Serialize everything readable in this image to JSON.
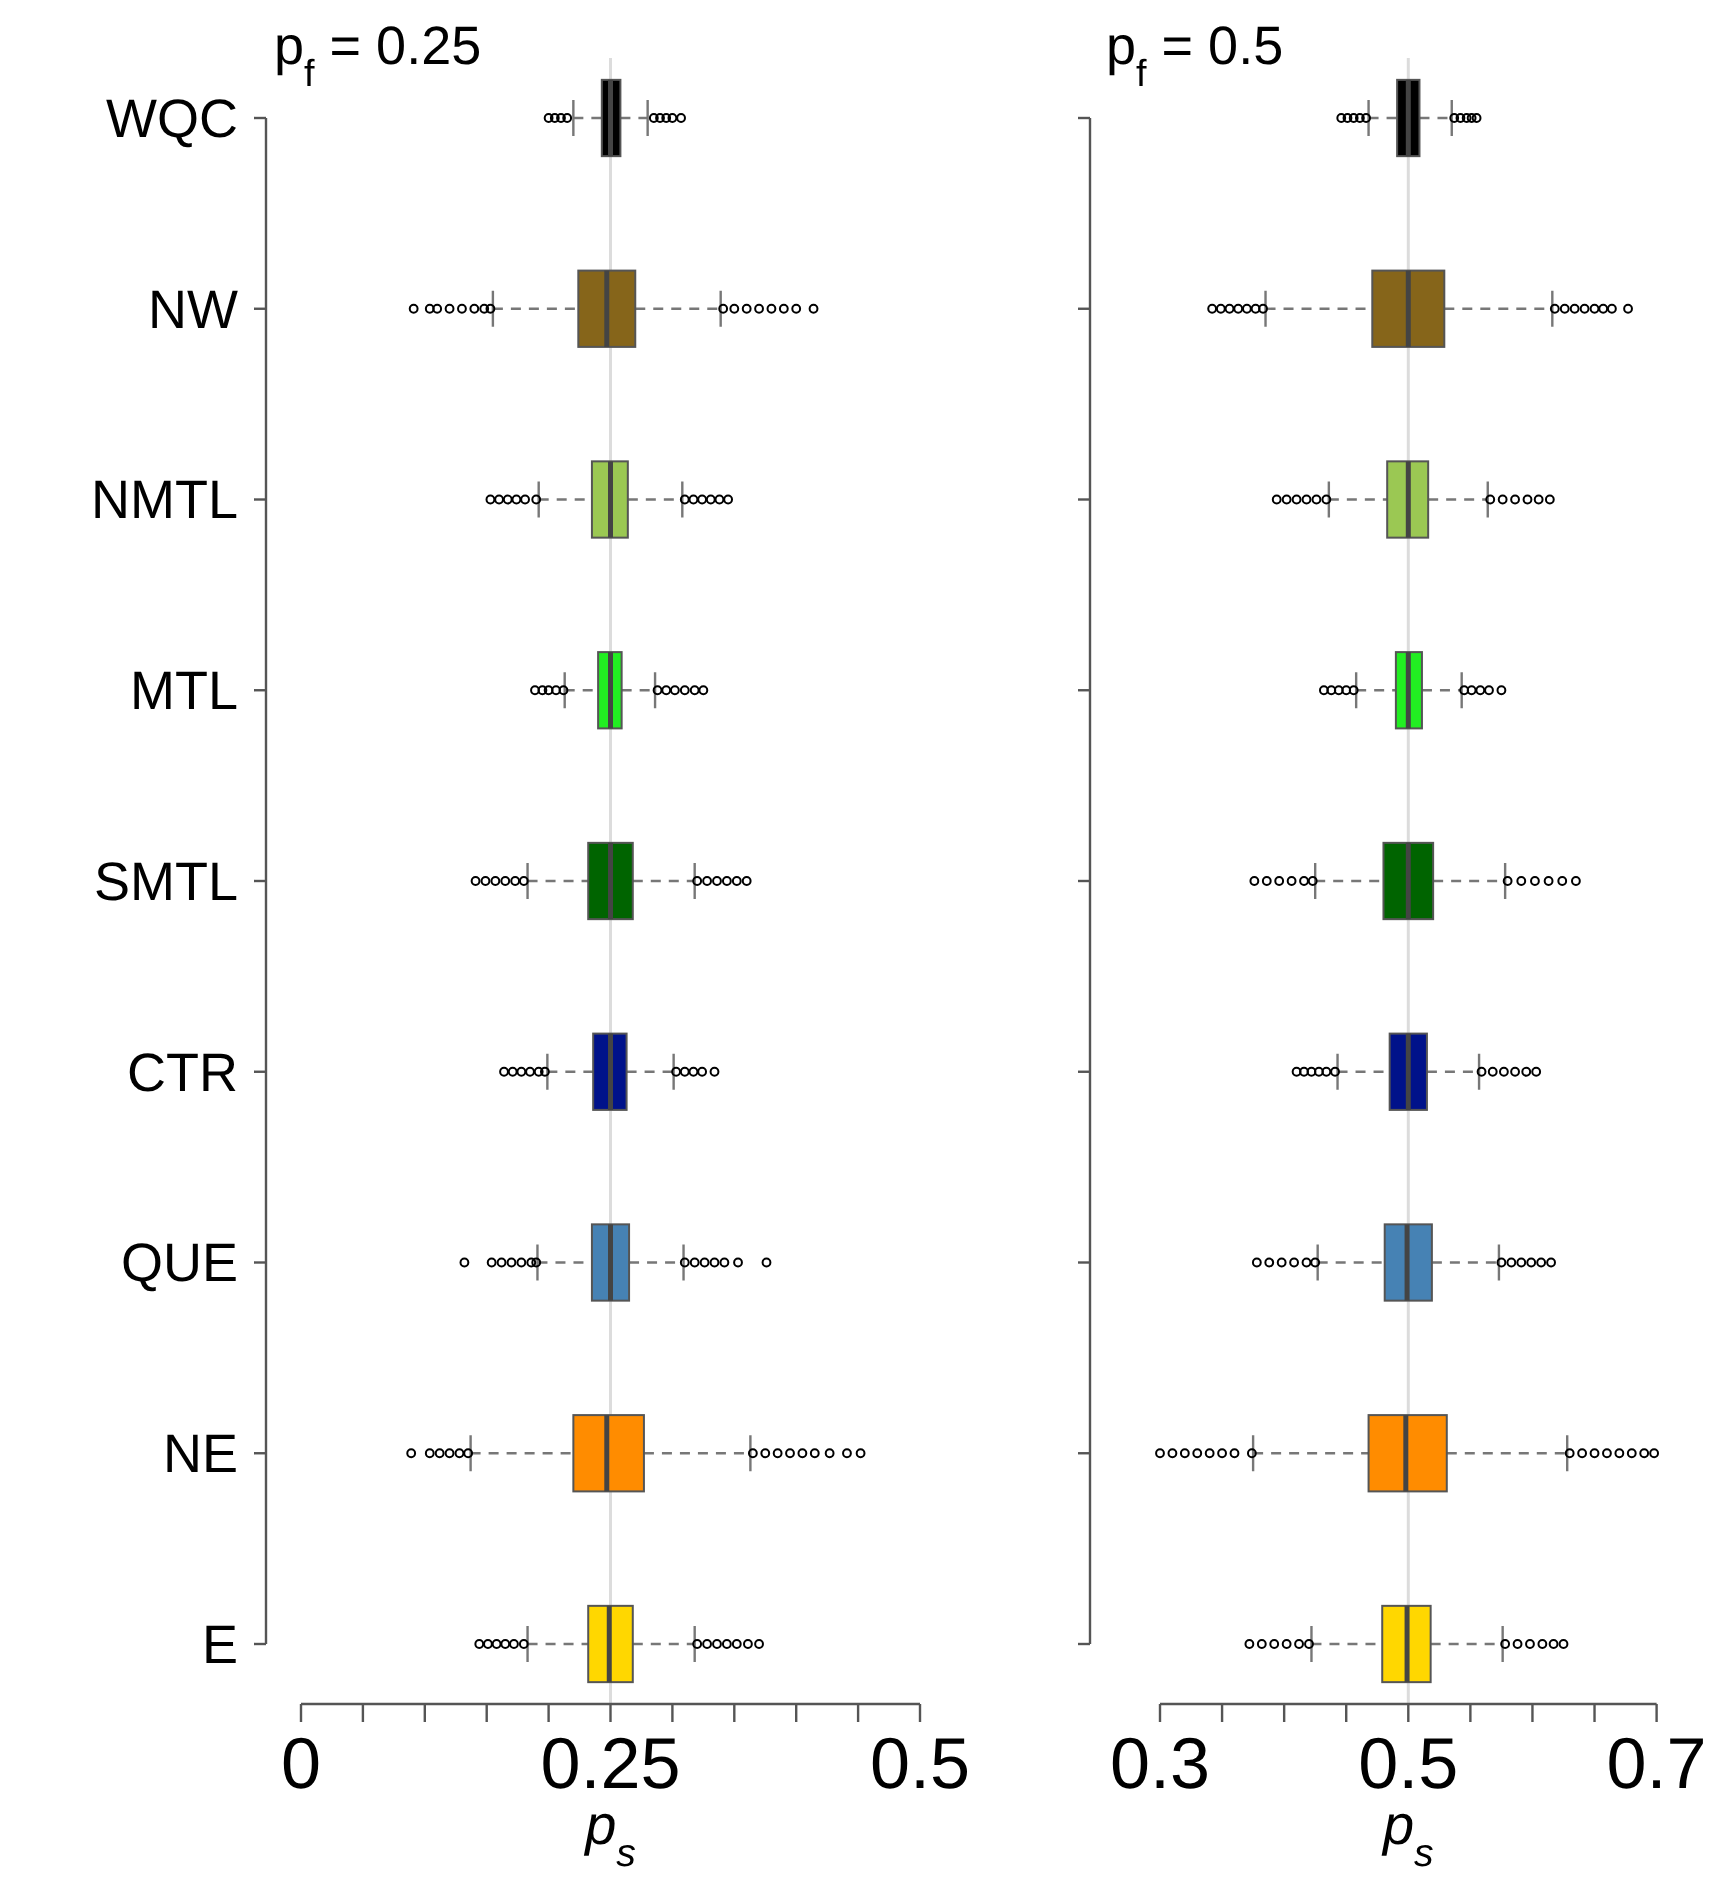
{
  "chart_data": [
    {
      "type": "box",
      "orientation": "horizontal",
      "title": "p$_{f}$ = 0.25",
      "xlabel": "p$_{s}$",
      "categories": [
        "WQC",
        "NW",
        "NMTL",
        "MTL",
        "SMTL",
        "CTR",
        "QUE",
        "NE",
        "E"
      ],
      "colors": [
        "#000000",
        "#86651a",
        "#9bc853",
        "#22ee22",
        "#006400",
        "#00128a",
        "#4682b4",
        "#ff8c00",
        "#ffd700"
      ],
      "boxes": [
        {
          "low": 0.22,
          "q1": 0.243,
          "median": 0.25,
          "q3": 0.258,
          "high": 0.28,
          "outliers": [
            0.2,
            0.205,
            0.21,
            0.215,
            0.285,
            0.29,
            0.295,
            0.3,
            0.307
          ]
        },
        {
          "low": 0.155,
          "q1": 0.224,
          "median": 0.247,
          "q3": 0.27,
          "high": 0.339,
          "outliers": [
            0.091,
            0.104,
            0.11,
            0.12,
            0.13,
            0.14,
            0.148,
            0.153,
            0.341,
            0.35,
            0.36,
            0.37,
            0.38,
            0.39,
            0.4,
            0.414
          ]
        },
        {
          "low": 0.192,
          "q1": 0.235,
          "median": 0.25,
          "q3": 0.264,
          "high": 0.308,
          "outliers": [
            0.153,
            0.16,
            0.167,
            0.174,
            0.181,
            0.19,
            0.31,
            0.317,
            0.324,
            0.331,
            0.338,
            0.345
          ]
        },
        {
          "low": 0.213,
          "q1": 0.24,
          "median": 0.25,
          "q3": 0.259,
          "high": 0.286,
          "outliers": [
            0.189,
            0.195,
            0.2,
            0.206,
            0.212,
            0.288,
            0.295,
            0.302,
            0.31,
            0.318,
            0.325
          ]
        },
        {
          "low": 0.183,
          "q1": 0.232,
          "median": 0.25,
          "q3": 0.268,
          "high": 0.318,
          "outliers": [
            0.141,
            0.149,
            0.157,
            0.165,
            0.173,
            0.18,
            0.32,
            0.328,
            0.336,
            0.344,
            0.352,
            0.36
          ]
        },
        {
          "low": 0.199,
          "q1": 0.236,
          "median": 0.25,
          "q3": 0.263,
          "high": 0.301,
          "outliers": [
            0.164,
            0.171,
            0.178,
            0.185,
            0.192,
            0.197,
            0.303,
            0.31,
            0.317,
            0.324,
            0.334
          ]
        },
        {
          "low": 0.191,
          "q1": 0.235,
          "median": 0.25,
          "q3": 0.265,
          "high": 0.309,
          "outliers": [
            0.132,
            0.154,
            0.162,
            0.17,
            0.178,
            0.186,
            0.19,
            0.31,
            0.318,
            0.326,
            0.334,
            0.342,
            0.353,
            0.376
          ]
        },
        {
          "low": 0.137,
          "q1": 0.22,
          "median": 0.247,
          "q3": 0.277,
          "high": 0.363,
          "outliers": [
            0.089,
            0.104,
            0.112,
            0.12,
            0.128,
            0.135,
            0.365,
            0.375,
            0.385,
            0.395,
            0.405,
            0.415,
            0.427,
            0.441,
            0.452
          ]
        },
        {
          "low": 0.183,
          "q1": 0.232,
          "median": 0.249,
          "q3": 0.268,
          "high": 0.318,
          "outliers": [
            0.144,
            0.151,
            0.158,
            0.165,
            0.172,
            0.18,
            0.32,
            0.328,
            0.336,
            0.344,
            0.352,
            0.361,
            0.37
          ]
        }
      ],
      "xlim": [
        0,
        0.5
      ],
      "xticks": [
        0,
        {
          "value": 0.05,
          "label": null
        },
        {
          "value": 0.1,
          "label": null
        },
        {
          "value": 0.15,
          "label": null
        },
        {
          "value": 0.2,
          "label": null
        },
        0.25,
        {
          "value": 0.3,
          "label": null
        },
        {
          "value": 0.35,
          "label": null
        },
        {
          "value": 0.4,
          "label": null
        },
        {
          "value": 0.45,
          "label": null
        },
        0.5
      ],
      "ref_lines": [
        {
          "axis": "x",
          "value": 0.25,
          "color": "#dcdcdc"
        }
      ],
      "marker": "circle"
    },
    {
      "type": "box",
      "orientation": "horizontal",
      "title": "p$_{f}$ = 0.5",
      "xlabel": "p$_{s}$",
      "categories": [
        null,
        null,
        null,
        null,
        null,
        null,
        null,
        null,
        null
      ],
      "colors": [
        "#000000",
        "#86651a",
        "#9bc853",
        "#22ee22",
        "#006400",
        "#00128a",
        "#4682b4",
        "#ff8c00",
        "#ffd700"
      ],
      "boxes": [
        {
          "low": 0.468,
          "q1": 0.491,
          "median": 0.5,
          "q3": 0.509,
          "high": 0.535,
          "outliers": [
            0.446,
            0.451,
            0.456,
            0.461,
            0.466,
            0.537,
            0.542,
            0.547,
            0.551,
            0.555
          ]
        },
        {
          "low": 0.385,
          "q1": 0.471,
          "median": 0.5,
          "q3": 0.529,
          "high": 0.616,
          "outliers": [
            0.342,
            0.349,
            0.356,
            0.363,
            0.37,
            0.377,
            0.383,
            0.618,
            0.626,
            0.634,
            0.642,
            0.65,
            0.657,
            0.664,
            0.677
          ]
        },
        {
          "low": 0.436,
          "q1": 0.483,
          "median": 0.5,
          "q3": 0.516,
          "high": 0.564,
          "outliers": [
            0.394,
            0.402,
            0.41,
            0.418,
            0.426,
            0.434,
            0.566,
            0.576,
            0.586,
            0.596,
            0.605,
            0.614
          ]
        },
        {
          "low": 0.458,
          "q1": 0.49,
          "median": 0.5,
          "q3": 0.511,
          "high": 0.543,
          "outliers": [
            0.432,
            0.438,
            0.444,
            0.45,
            0.456,
            0.545,
            0.551,
            0.558,
            0.565,
            0.575
          ]
        },
        {
          "low": 0.425,
          "q1": 0.48,
          "median": 0.5,
          "q3": 0.52,
          "high": 0.578,
          "outliers": [
            0.376,
            0.386,
            0.396,
            0.406,
            0.416,
            0.423,
            0.58,
            0.591,
            0.602,
            0.613,
            0.624,
            0.635
          ]
        },
        {
          "low": 0.443,
          "q1": 0.485,
          "median": 0.5,
          "q3": 0.515,
          "high": 0.557,
          "outliers": [
            0.41,
            0.416,
            0.422,
            0.428,
            0.434,
            0.441,
            0.559,
            0.568,
            0.577,
            0.586,
            0.595,
            0.603
          ]
        },
        {
          "low": 0.427,
          "q1": 0.481,
          "median": 0.499,
          "q3": 0.519,
          "high": 0.573,
          "outliers": [
            0.378,
            0.388,
            0.398,
            0.408,
            0.418,
            0.425,
            0.575,
            0.583,
            0.591,
            0.599,
            0.607,
            0.615
          ]
        },
        {
          "low": 0.375,
          "q1": 0.468,
          "median": 0.498,
          "q3": 0.531,
          "high": 0.628,
          "outliers": [
            0.3,
            0.31,
            0.32,
            0.33,
            0.34,
            0.35,
            0.36,
            0.374,
            0.63,
            0.64,
            0.65,
            0.66,
            0.67,
            0.68,
            0.69,
            0.698
          ]
        },
        {
          "low": 0.422,
          "q1": 0.479,
          "median": 0.499,
          "q3": 0.518,
          "high": 0.576,
          "outliers": [
            0.372,
            0.382,
            0.392,
            0.402,
            0.412,
            0.42,
            0.578,
            0.588,
            0.598,
            0.608,
            0.617,
            0.625
          ]
        }
      ],
      "xlim": [
        0.3,
        0.7
      ],
      "xticks": [
        0.3,
        {
          "value": 0.35,
          "label": null
        },
        {
          "value": 0.4,
          "label": null
        },
        {
          "value": 0.45,
          "label": null
        },
        0.5,
        {
          "value": 0.55,
          "label": null
        },
        {
          "value": 0.6,
          "label": null
        },
        {
          "value": 0.65,
          "label": null
        },
        0.7
      ],
      "ref_lines": [
        {
          "axis": "x",
          "value": 0.5,
          "color": "#dcdcdc"
        }
      ],
      "marker": "circle"
    }
  ]
}
